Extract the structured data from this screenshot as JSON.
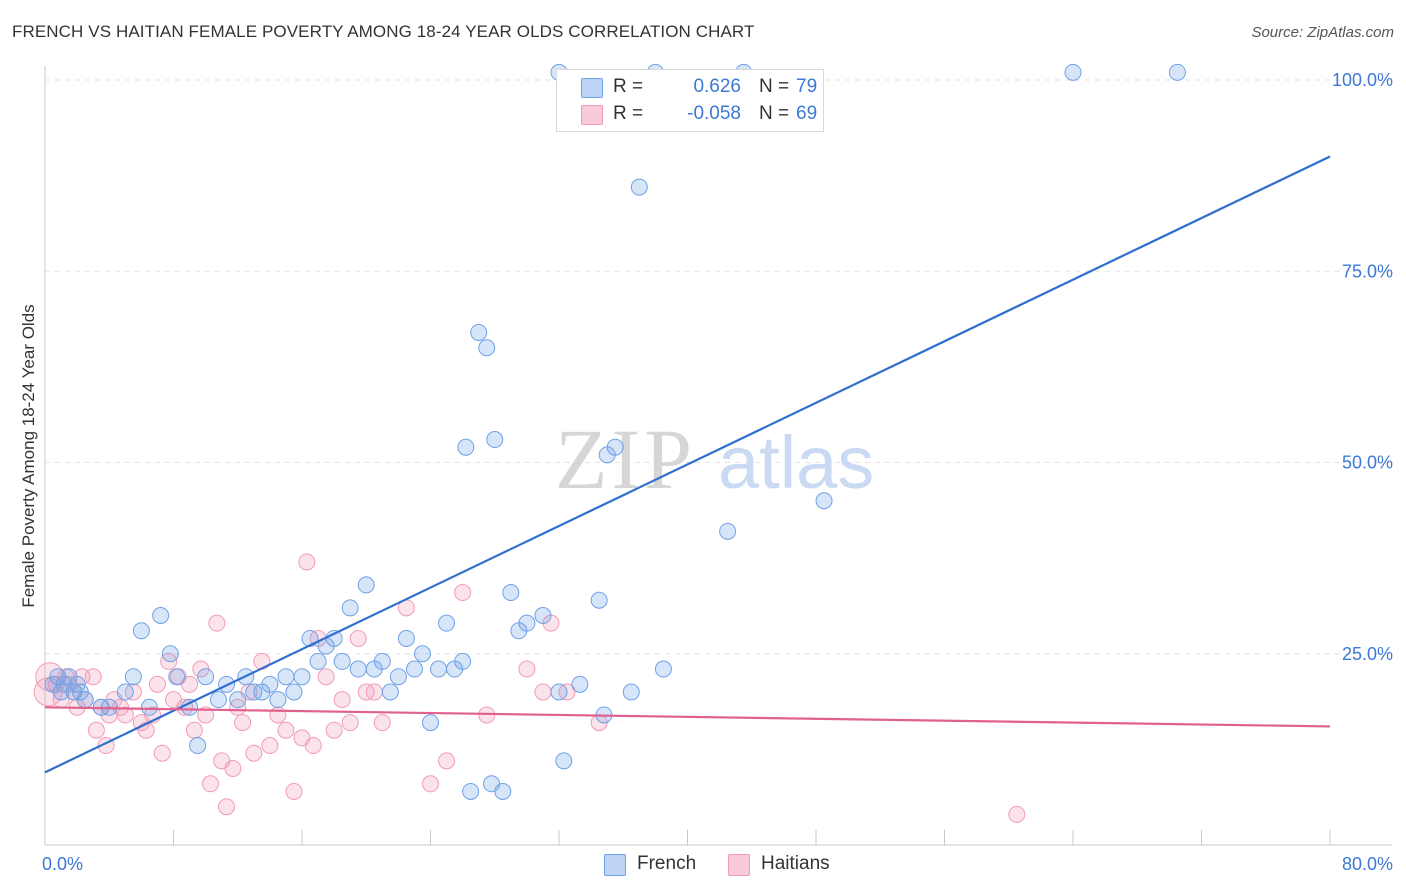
{
  "title": "FRENCH VS HAITIAN FEMALE POVERTY AMONG 18-24 YEAR OLDS CORRELATION CHART",
  "source": "Source: ZipAtlas.com",
  "watermark": {
    "zip": "ZIP",
    "atlas": "atlas"
  },
  "colors": {
    "french": "#6fa1e6",
    "french_line": "#2f6fcf",
    "haitians": "#f29bb8",
    "haitians_line": "#e0608e",
    "axis_value": "#3c78d8"
  },
  "legend": {
    "rows": [
      {
        "r_label": "R =",
        "r_value": "0.626",
        "n_label": "N =",
        "n_value": "79"
      },
      {
        "r_label": "R =",
        "r_value": "-0.058",
        "n_label": "N =",
        "n_value": "69"
      }
    ]
  },
  "bottom_legend": {
    "french": "French",
    "haitians": "Haitians"
  },
  "chart_data": {
    "type": "scatter",
    "title": "FRENCH VS HAITIAN FEMALE POVERTY AMONG 18-24 YEAR OLDS CORRELATION CHART",
    "xlabel": "",
    "ylabel": "Female Poverty Among 18-24 Year Olds",
    "xlim": [
      0,
      80
    ],
    "ylim": [
      0,
      100
    ],
    "x_tick_labels": [
      {
        "value": 0,
        "label": "0.0%"
      },
      {
        "value": 80,
        "label": "80.0%"
      }
    ],
    "y_tick_labels": [
      {
        "value": 25,
        "label": "25.0%"
      },
      {
        "value": 50,
        "label": "50.0%"
      },
      {
        "value": 75,
        "label": "75.0%"
      },
      {
        "value": 100,
        "label": "100.0%"
      }
    ],
    "series": [
      {
        "name": "French",
        "r": 0.626,
        "n": 79,
        "trend": {
          "x0": 0,
          "y0": 9.5,
          "x1": 80,
          "y1": 90.0
        },
        "points": [
          [
            0.5,
            21
          ],
          [
            0.8,
            22
          ],
          [
            1.0,
            20
          ],
          [
            1.2,
            21
          ],
          [
            1.5,
            22
          ],
          [
            1.8,
            20
          ],
          [
            2.0,
            21
          ],
          [
            2.2,
            20
          ],
          [
            2.5,
            19
          ],
          [
            3.5,
            18
          ],
          [
            4.0,
            18
          ],
          [
            5.0,
            20
          ],
          [
            5.5,
            22
          ],
          [
            6.0,
            28
          ],
          [
            6.5,
            18
          ],
          [
            7.2,
            30
          ],
          [
            7.8,
            25
          ],
          [
            8.2,
            22
          ],
          [
            9.0,
            18
          ],
          [
            9.5,
            13
          ],
          [
            10.0,
            22
          ],
          [
            10.8,
            19
          ],
          [
            11.3,
            21
          ],
          [
            12.0,
            19
          ],
          [
            12.5,
            22
          ],
          [
            13.0,
            20
          ],
          [
            13.5,
            20
          ],
          [
            14.0,
            21
          ],
          [
            14.5,
            19
          ],
          [
            15.0,
            22
          ],
          [
            15.5,
            20
          ],
          [
            16.0,
            22
          ],
          [
            16.5,
            27
          ],
          [
            17.0,
            24
          ],
          [
            17.5,
            26
          ],
          [
            18.0,
            27
          ],
          [
            18.5,
            24
          ],
          [
            19.0,
            31
          ],
          [
            19.5,
            23
          ],
          [
            20.0,
            34
          ],
          [
            20.5,
            23
          ],
          [
            21.0,
            24
          ],
          [
            21.5,
            20
          ],
          [
            22.0,
            22
          ],
          [
            22.5,
            27
          ],
          [
            23.0,
            23
          ],
          [
            23.5,
            25
          ],
          [
            24.0,
            16
          ],
          [
            24.5,
            23
          ],
          [
            25.0,
            29
          ],
          [
            25.5,
            23
          ],
          [
            26.0,
            24
          ],
          [
            26.2,
            52
          ],
          [
            26.5,
            7
          ],
          [
            27.0,
            67
          ],
          [
            27.5,
            65
          ],
          [
            27.8,
            8
          ],
          [
            28.0,
            53
          ],
          [
            28.5,
            7
          ],
          [
            29.0,
            33
          ],
          [
            29.5,
            28
          ],
          [
            30.0,
            29
          ],
          [
            31.0,
            30
          ],
          [
            32.0,
            20
          ],
          [
            32.3,
            11
          ],
          [
            33.3,
            21
          ],
          [
            34.5,
            32
          ],
          [
            34.8,
            17
          ],
          [
            35.0,
            51
          ],
          [
            35.5,
            52
          ],
          [
            36.5,
            20
          ],
          [
            37.0,
            86
          ],
          [
            38.5,
            23
          ],
          [
            42.5,
            41
          ],
          [
            48.5,
            45
          ],
          [
            64.0,
            101
          ],
          [
            70.5,
            101
          ],
          [
            32.0,
            101
          ],
          [
            38.0,
            101
          ],
          [
            43.5,
            101
          ]
        ]
      },
      {
        "name": "Haitians",
        "r": -0.058,
        "n": 69,
        "trend": {
          "x0": 0,
          "y0": 18.0,
          "x1": 80,
          "y1": 15.5
        },
        "points": [
          [
            0.3,
            22
          ],
          [
            0.7,
            21
          ],
          [
            1.0,
            19
          ],
          [
            1.3,
            22
          ],
          [
            1.5,
            21
          ],
          [
            1.8,
            20
          ],
          [
            2.0,
            18
          ],
          [
            2.3,
            22
          ],
          [
            2.5,
            19
          ],
          [
            3.0,
            22
          ],
          [
            3.2,
            15
          ],
          [
            3.5,
            18
          ],
          [
            3.8,
            13
          ],
          [
            4.0,
            17
          ],
          [
            4.3,
            19
          ],
          [
            4.7,
            18
          ],
          [
            5.0,
            17
          ],
          [
            5.5,
            20
          ],
          [
            6.0,
            16
          ],
          [
            6.3,
            15
          ],
          [
            6.7,
            17
          ],
          [
            7.0,
            21
          ],
          [
            7.3,
            12
          ],
          [
            7.7,
            24
          ],
          [
            8.0,
            19
          ],
          [
            8.3,
            22
          ],
          [
            8.7,
            18
          ],
          [
            9.0,
            21
          ],
          [
            9.3,
            15
          ],
          [
            9.7,
            23
          ],
          [
            10.0,
            17
          ],
          [
            10.3,
            8
          ],
          [
            10.7,
            29
          ],
          [
            11.0,
            11
          ],
          [
            11.3,
            5
          ],
          [
            11.7,
            10
          ],
          [
            12.0,
            18
          ],
          [
            12.3,
            16
          ],
          [
            12.7,
            20
          ],
          [
            13.0,
            12
          ],
          [
            13.5,
            24
          ],
          [
            14.0,
            13
          ],
          [
            14.5,
            17
          ],
          [
            15.0,
            15
          ],
          [
            15.5,
            7
          ],
          [
            16.0,
            14
          ],
          [
            16.3,
            37
          ],
          [
            16.7,
            13
          ],
          [
            17.0,
            27
          ],
          [
            17.5,
            22
          ],
          [
            18.0,
            15
          ],
          [
            18.5,
            19
          ],
          [
            19.0,
            16
          ],
          [
            19.5,
            27
          ],
          [
            20.0,
            20
          ],
          [
            20.5,
            20
          ],
          [
            21.0,
            16
          ],
          [
            22.5,
            31
          ],
          [
            24.0,
            8
          ],
          [
            25.0,
            11
          ],
          [
            26.0,
            33
          ],
          [
            27.5,
            17
          ],
          [
            30.0,
            23
          ],
          [
            31.0,
            20
          ],
          [
            31.5,
            29
          ],
          [
            32.5,
            20
          ],
          [
            34.5,
            16
          ],
          [
            60.5,
            4
          ],
          [
            0.2,
            20
          ]
        ]
      }
    ]
  }
}
